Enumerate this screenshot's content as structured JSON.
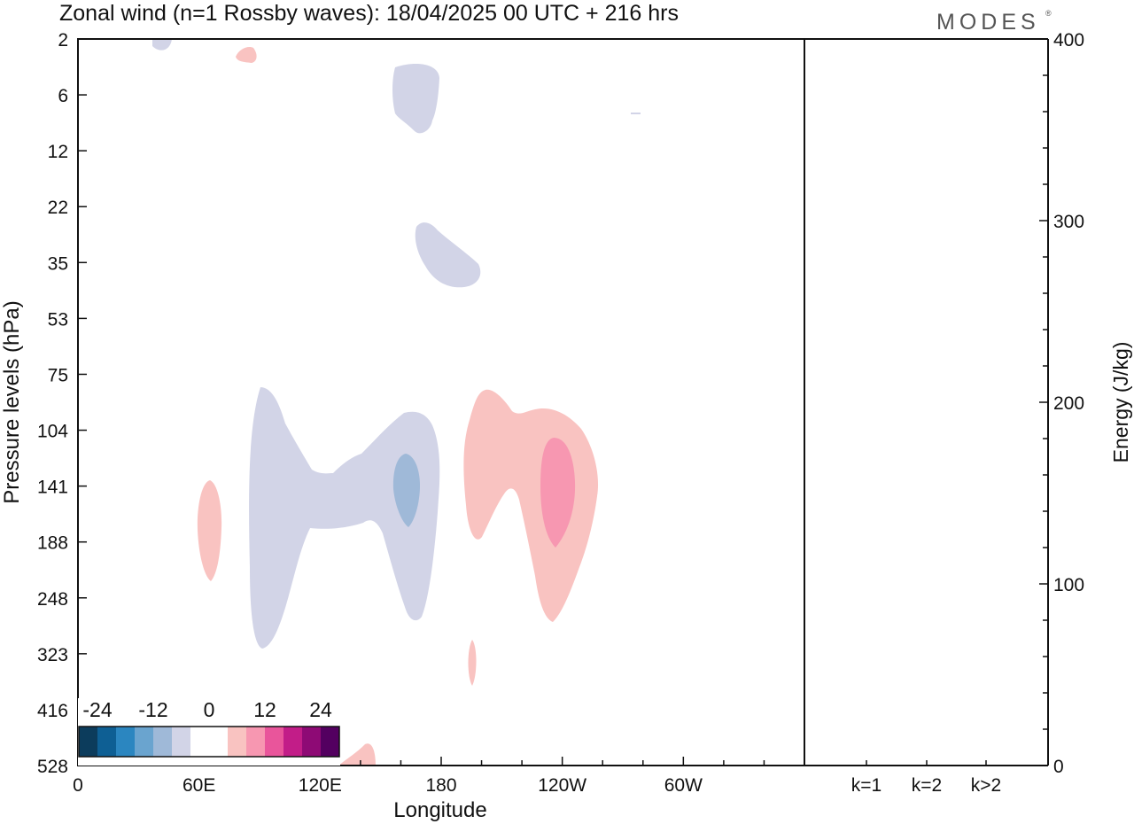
{
  "chart_data": {
    "type": "heatmap",
    "title": "Zonal wind (n=1 Rossby waves):  18/04/2025  00 UTC  + 216 hrs",
    "brand": "MODES",
    "brand_mark": "®",
    "xlabel": "Longitude",
    "ylabel": "Pressure levels (hPa)",
    "xticks": [
      "0",
      "60E",
      "120E",
      "180",
      "120W",
      "60W"
    ],
    "yticks": [
      "2",
      "6",
      "12",
      "22",
      "35",
      "53",
      "75",
      "104",
      "141",
      "188",
      "248",
      "323",
      "416",
      "528"
    ],
    "colorbar": {
      "labels": [
        "-24",
        "-12",
        "0",
        "12",
        "24"
      ],
      "colors": [
        "#0c3c5c",
        "#0e5f94",
        "#2b86c0",
        "#6aa4cf",
        "#9fb9d8",
        "#d2d4e7",
        "#ffffff",
        "#ffffff",
        "#f9c3c1",
        "#f797b1",
        "#e9559b",
        "#c21d88",
        "#8e0a75",
        "#530060"
      ]
    },
    "contours": [
      {
        "value": -3,
        "color": "#d2d4e7",
        "lon_range": [
          38,
          46
        ],
        "lev": "2"
      },
      {
        "value": -3,
        "color": "#d2d4e7",
        "lon_range": [
          155,
          178
        ],
        "lev": "3-9"
      },
      {
        "value": -3,
        "color": "#d2d4e7",
        "lon_range": [
          165,
          200
        ],
        "lev": "25-44"
      },
      {
        "value": -3,
        "color": "#d2d4e7",
        "lon_range": [
          84,
          178
        ],
        "lev": "82-330"
      },
      {
        "value": -6,
        "color": "#9fb9d8",
        "lon_range": [
          155,
          168
        ],
        "lev": "120-185"
      },
      {
        "value": 3,
        "color": "#f9c3c1",
        "lon_range": [
          78,
          88
        ],
        "lev": "2-4"
      },
      {
        "value": 3,
        "color": "#f9c3c1",
        "lon_range": [
          58,
          70
        ],
        "lev": "145-230"
      },
      {
        "value": 3,
        "color": "#f9c3c1",
        "lon_range": [
          190,
          258
        ],
        "lev": "82-270"
      },
      {
        "value": 3,
        "color": "#f9c3c1",
        "lon_range": [
          193,
          198
        ],
        "lev": "320-380"
      },
      {
        "value": 3,
        "color": "#f9c3c1",
        "lon_range": [
          128,
          148
        ],
        "lev": "480-528"
      },
      {
        "value": 6,
        "color": "#f797b1",
        "lon_range": [
          228,
          245
        ],
        "lev": "108-200"
      }
    ],
    "energy_panel": {
      "ylabel": "Energy (J/kg)",
      "ylim": [
        0,
        400
      ],
      "yticks": [
        "0",
        "100",
        "200",
        "300",
        "400"
      ],
      "categories": [
        "k=1",
        "k=2",
        "k>2"
      ],
      "values": [
        0,
        0,
        0
      ]
    }
  }
}
